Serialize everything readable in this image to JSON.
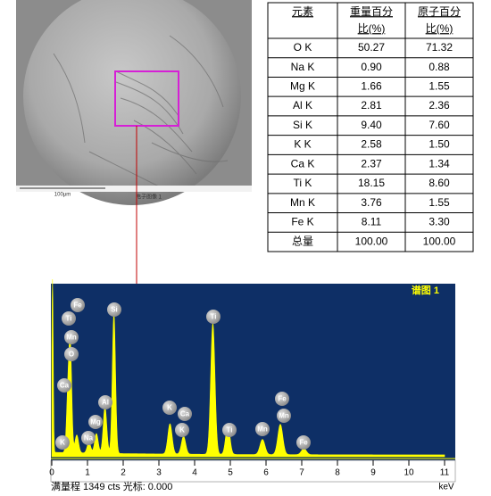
{
  "image": {
    "scale_label": "100μm",
    "caption": "电子图像 1"
  },
  "table": {
    "header": [
      [
        "元素"
      ],
      [
        "重量百分",
        "比(%)"
      ],
      [
        "原子百分",
        "比(%)"
      ]
    ],
    "rows": [
      [
        "O K",
        "50.27",
        "71.32"
      ],
      [
        "Na K",
        "0.90",
        "0.88"
      ],
      [
        "Mg K",
        "1.66",
        "1.55"
      ],
      [
        "Al K",
        "2.81",
        "2.36"
      ],
      [
        "Si K",
        "9.40",
        "7.60"
      ],
      [
        "K K",
        "2.58",
        "1.50"
      ],
      [
        "Ca K",
        "2.37",
        "1.34"
      ],
      [
        "Ti K",
        "18.15",
        "8.60"
      ],
      [
        "Mn K",
        "3.76",
        "1.55"
      ],
      [
        "Fe K",
        "8.11",
        "3.30"
      ],
      [
        "总量",
        "100.00",
        "100.00"
      ]
    ]
  },
  "spectrum": {
    "title": "谱图 1",
    "footer": "满量程 1349 cts 光标: 0.000",
    "x_unit": "keV",
    "xlim": [
      0,
      11
    ],
    "xticks": [
      0,
      1,
      2,
      3,
      4,
      5,
      6,
      7,
      8,
      9,
      10,
      11
    ],
    "peak_labels": [
      "Fe",
      "Ti",
      "Mn",
      "O",
      "Ca",
      "Si",
      "Al",
      "Mg",
      "Na",
      "K",
      "K",
      "Ca",
      "K",
      "Ti",
      "Ti",
      "Mn",
      "Fe",
      "Mn",
      "Fe"
    ]
  }
}
